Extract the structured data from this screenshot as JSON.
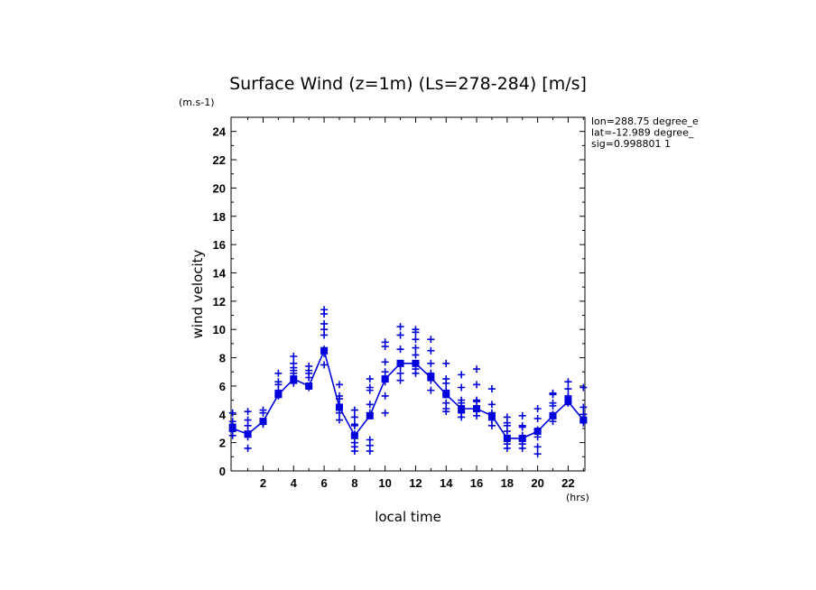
{
  "chart_data": {
    "type": "line",
    "title": "Surface Wind (z=1m) (Ls=278-284) [m/s]",
    "units_label": "(m.s-1)",
    "xlabel": "local time",
    "xunit": "(hrs)",
    "ylabel": "wind velocity",
    "xlim": [
      0,
      23
    ],
    "ylim": [
      0,
      25
    ],
    "xticks": [
      "2",
      "4",
      "6",
      "8",
      "10",
      "12",
      "14",
      "16",
      "18",
      "20",
      "22"
    ],
    "yticks": [
      "0",
      "2",
      "4",
      "6",
      "8",
      "10",
      "12",
      "14",
      "16",
      "18",
      "20",
      "22",
      "24"
    ],
    "info_lines": [
      "lon=288.75 degree_e",
      "lat=-12.989 degree_",
      "sig=0.998801 1"
    ],
    "color": "#0000dd",
    "series": [
      {
        "values_x": [
          0,
          1,
          2,
          3,
          4,
          5,
          6,
          7,
          8,
          9,
          10,
          11,
          12,
          13,
          14,
          15,
          16,
          17,
          18,
          19,
          20,
          21,
          22,
          23
        ],
        "values": [
          3.0,
          2.6,
          3.5,
          5.4,
          6.5,
          6.0,
          8.5,
          4.5,
          2.5,
          3.9,
          6.5,
          7.6,
          7.6,
          6.6,
          5.4,
          4.4,
          4.4,
          3.9,
          2.3,
          2.3,
          2.8,
          3.9,
          4.9,
          3.6
        ]
      }
    ],
    "scatter": [
      {
        "x": 0,
        "y": [
          4.1,
          3.5,
          3.3,
          2.9,
          2.5
        ]
      },
      {
        "x": 1,
        "y": [
          4.2,
          3.6,
          3.2,
          2.8,
          2.4,
          1.6
        ]
      },
      {
        "x": 2,
        "y": [
          4.3,
          4.1,
          3.4,
          3.3
        ]
      },
      {
        "x": 3,
        "y": [
          6.9,
          6.3,
          6.1,
          5.7,
          5.5,
          5.3
        ]
      },
      {
        "x": 4,
        "y": [
          8.1,
          7.6,
          7.3,
          7.1,
          6.9,
          6.2
        ]
      },
      {
        "x": 5,
        "y": [
          7.4,
          7.1,
          6.9,
          6.6,
          5.9
        ]
      },
      {
        "x": 6,
        "y": [
          11.4,
          11.1,
          10.4,
          10.0,
          9.6,
          8.6,
          8.3,
          7.5
        ]
      },
      {
        "x": 7,
        "y": [
          6.1,
          5.3,
          5.1,
          4.7,
          4.5,
          4.1,
          3.6
        ]
      },
      {
        "x": 8,
        "y": [
          4.3,
          3.8,
          3.3,
          3.2,
          2.6,
          2.0,
          1.7,
          1.4
        ]
      },
      {
        "x": 9,
        "y": [
          6.5,
          5.9,
          5.7,
          4.7,
          4.1,
          2.2,
          1.8,
          1.4
        ]
      },
      {
        "x": 10,
        "y": [
          9.1,
          8.8,
          7.7,
          7.0,
          6.5,
          6.3,
          5.3,
          4.1
        ]
      },
      {
        "x": 11,
        "y": [
          10.2,
          9.6,
          8.6,
          7.6,
          7.4,
          6.9,
          6.4
        ]
      },
      {
        "x": 12,
        "y": [
          10.0,
          9.8,
          9.3,
          8.7,
          8.2,
          7.6,
          7.2,
          6.9
        ]
      },
      {
        "x": 13,
        "y": [
          9.3,
          8.5,
          7.6,
          6.9,
          6.6,
          6.4,
          5.7
        ]
      },
      {
        "x": 14,
        "y": [
          7.6,
          6.5,
          6.2,
          5.7,
          5.4,
          4.8,
          4.4,
          4.2
        ]
      },
      {
        "x": 15,
        "y": [
          6.8,
          5.9,
          5.0,
          4.8,
          4.4,
          4.1,
          3.8
        ]
      },
      {
        "x": 16,
        "y": [
          7.2,
          6.1,
          5.0,
          4.9,
          4.4,
          4.2,
          3.9
        ]
      },
      {
        "x": 17,
        "y": [
          5.8,
          4.7,
          4.1,
          3.9,
          3.6,
          3.2
        ]
      },
      {
        "x": 18,
        "y": [
          3.8,
          3.4,
          3.2,
          2.8,
          2.5,
          1.9,
          1.6
        ]
      },
      {
        "x": 19,
        "y": [
          3.9,
          3.2,
          3.1,
          2.5,
          2.2,
          1.9,
          1.6
        ]
      },
      {
        "x": 20,
        "y": [
          4.4,
          3.7,
          2.9,
          2.4,
          1.7,
          1.2
        ]
      },
      {
        "x": 21,
        "y": [
          5.5,
          5.4,
          4.8,
          4.6,
          4.0,
          3.8,
          3.5
        ]
      },
      {
        "x": 22,
        "y": [
          6.3,
          5.8,
          5.3,
          5.2,
          4.8
        ]
      },
      {
        "x": 23,
        "y": [
          5.9,
          4.5,
          4.0,
          3.6,
          3.4
        ]
      }
    ]
  }
}
